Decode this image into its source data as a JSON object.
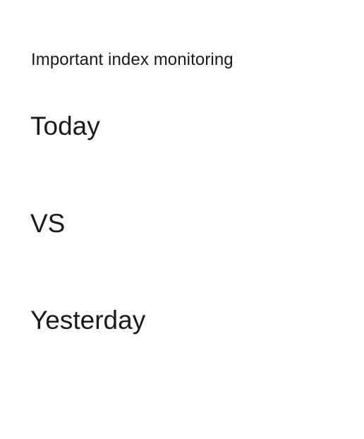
{
  "header": {
    "title": "Important index monitoring"
  },
  "comparison": {
    "current_label": "Today",
    "separator_label": "VS",
    "previous_label": "Yesterday"
  }
}
